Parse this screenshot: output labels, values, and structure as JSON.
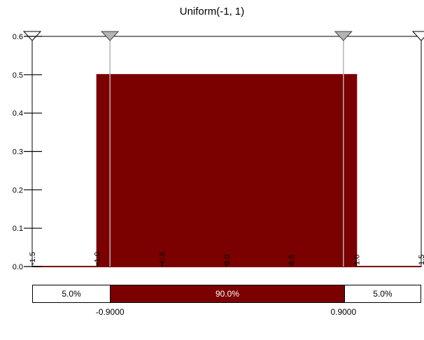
{
  "chart_data": {
    "type": "area",
    "title": "Uniform(-1, 1)",
    "distribution": {
      "name": "Uniform",
      "min": -1,
      "max": 1
    },
    "density": {
      "x": [
        -1.5,
        -1.0,
        -1.0,
        1.0,
        1.0,
        1.5
      ],
      "y": [
        0,
        0,
        0.5,
        0.5,
        0,
        0
      ]
    },
    "xlim": [
      -1.5,
      1.5
    ],
    "ylim": [
      0,
      0.6
    ],
    "x_ticks": [
      "-1.5",
      "-1.0",
      "-0.5",
      "0.0",
      "0.5",
      "1.0",
      "1.5"
    ],
    "y_ticks": [
      "0.0",
      "0.1",
      "0.2",
      "0.3",
      "0.4",
      "0.5",
      "0.6"
    ],
    "x_tick_values": [
      -1.5,
      -1.0,
      -0.5,
      0.0,
      0.5,
      1.0,
      1.5
    ],
    "y_tick_values": [
      0,
      0.1,
      0.2,
      0.3,
      0.4,
      0.5,
      0.6
    ],
    "markers": [
      -0.9,
      0.9
    ],
    "fill_color": "#7b0000",
    "line_color": "#7b0000",
    "marker_color": "#b4b4b4"
  },
  "probability_bar": {
    "left_pct": "5.0%",
    "middle_pct": "90.0%",
    "right_pct": "5.0%",
    "left_fraction": 0.05,
    "middle_fraction": 0.9,
    "right_fraction": 0.05,
    "left_cutoff": "-0.9000",
    "right_cutoff": "0.9000"
  }
}
